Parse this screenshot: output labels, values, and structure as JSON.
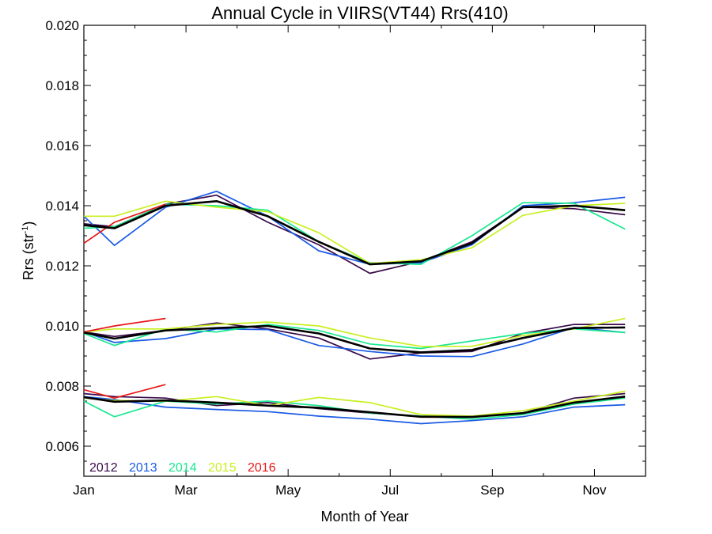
{
  "chart_data": {
    "type": "line",
    "title": "Annual Cycle in VIIRS(VT44) Rrs(410)",
    "xlabel": "Month of Year",
    "ylabel": "Rrs (str",
    "ylabel_sup": "-1",
    "ylabel_close": ")",
    "xlim": [
      1,
      12
    ],
    "ylim": [
      0.005,
      0.02
    ],
    "x_ticks": [
      {
        "value": 1,
        "label": "Jan"
      },
      {
        "value": 3,
        "label": "Mar"
      },
      {
        "value": 5,
        "label": "May"
      },
      {
        "value": 7,
        "label": "Jul"
      },
      {
        "value": 9,
        "label": "Sep"
      },
      {
        "value": 11,
        "label": "Nov"
      }
    ],
    "y_ticks": [
      {
        "value": 0.006,
        "label": "0.006"
      },
      {
        "value": 0.008,
        "label": "0.008"
      },
      {
        "value": 0.01,
        "label": "0.010"
      },
      {
        "value": 0.012,
        "label": "0.012"
      },
      {
        "value": 0.014,
        "label": "0.014"
      },
      {
        "value": 0.016,
        "label": "0.016"
      },
      {
        "value": 0.018,
        "label": "0.018"
      },
      {
        "value": 0.02,
        "label": "0.020"
      }
    ],
    "legend_position": "bottom-left",
    "grid": false,
    "x": [
      1.0,
      1.6,
      2.6,
      3.6,
      4.6,
      5.6,
      6.6,
      7.6,
      8.6,
      9.6,
      10.6,
      11.6
    ],
    "series": [
      {
        "name": "2012",
        "color": "#3a0a4a",
        "legend": true,
        "groups": [
          [
            0.0134,
            0.0133,
            0.01405,
            0.01435,
            0.01345,
            0.0127,
            0.01175,
            0.01215,
            0.0128,
            0.01395,
            0.0139,
            0.0137
          ],
          [
            0.0098,
            0.00965,
            0.00985,
            0.0101,
            0.0099,
            0.0096,
            0.0089,
            0.0091,
            0.00915,
            0.00975,
            0.01005,
            0.01005
          ],
          [
            0.00775,
            0.00765,
            0.0076,
            0.00735,
            0.00745,
            0.00725,
            0.0071,
            0.007,
            0.007,
            0.0071,
            0.0076,
            0.00775
          ]
        ]
      },
      {
        "name": "2013",
        "color": "#1a5ae6",
        "legend": true,
        "groups": [
          [
            0.01365,
            0.01268,
            0.01395,
            0.01448,
            0.01365,
            0.0125,
            0.01205,
            0.0121,
            0.0127,
            0.014,
            0.0141,
            0.01428
          ],
          [
            0.0098,
            0.00945,
            0.00958,
            0.0099,
            0.00988,
            0.00935,
            0.00915,
            0.009,
            0.00898,
            0.0094,
            0.00995,
            0.00978
          ],
          [
            0.00765,
            0.00755,
            0.0073,
            0.00722,
            0.00715,
            0.007,
            0.0069,
            0.00675,
            0.00685,
            0.00698,
            0.0073,
            0.00738
          ]
        ]
      },
      {
        "name": "2014",
        "color": "#1ae890",
        "legend": true,
        "groups": [
          [
            0.01325,
            0.0133,
            0.01405,
            0.014,
            0.01385,
            0.0128,
            0.0121,
            0.01205,
            0.013,
            0.0141,
            0.01408,
            0.01322
          ],
          [
            0.00975,
            0.00935,
            0.0099,
            0.0098,
            0.01005,
            0.00985,
            0.0094,
            0.00925,
            0.0095,
            0.00975,
            0.0099,
            0.00978
          ],
          [
            0.0075,
            0.00698,
            0.0075,
            0.0074,
            0.0075,
            0.00735,
            0.0071,
            0.007,
            0.0069,
            0.00705,
            0.0074,
            0.0076
          ]
        ]
      },
      {
        "name": "2015",
        "color": "#c8f020",
        "legend": true,
        "groups": [
          [
            0.01365,
            0.01365,
            0.01415,
            0.01395,
            0.0138,
            0.0131,
            0.01208,
            0.0122,
            0.0126,
            0.01368,
            0.014,
            0.01408
          ],
          [
            0.0098,
            0.0099,
            0.0099,
            0.01005,
            0.01013,
            0.01,
            0.0096,
            0.00932,
            0.00932,
            0.00968,
            0.0099,
            0.01025
          ],
          [
            0.0076,
            0.00752,
            0.0075,
            0.00765,
            0.00735,
            0.00762,
            0.00745,
            0.00705,
            0.007,
            0.00718,
            0.0075,
            0.00783
          ]
        ]
      },
      {
        "name": "2016",
        "color": "#e81818",
        "legend": true,
        "x": [
          1.0,
          1.6,
          2.6
        ],
        "groups": [
          [
            0.01275,
            0.01345,
            0.01405
          ],
          [
            0.0098,
            0.01,
            0.01025
          ],
          [
            0.00788,
            0.0076,
            0.00805
          ]
        ]
      },
      {
        "name": "mean",
        "color": "#000000",
        "legend": false,
        "width": 2.6,
        "groups": [
          [
            0.01335,
            0.01325,
            0.014,
            0.01415,
            0.01365,
            0.0128,
            0.01205,
            0.01215,
            0.01275,
            0.01395,
            0.014,
            0.01385
          ],
          [
            0.00978,
            0.00958,
            0.00985,
            0.00993,
            0.01,
            0.00975,
            0.00925,
            0.00912,
            0.0092,
            0.0096,
            0.00993,
            0.00995
          ],
          [
            0.00763,
            0.00748,
            0.00752,
            0.00745,
            0.00735,
            0.00728,
            0.00713,
            0.00698,
            0.00697,
            0.0071,
            0.00745,
            0.00765
          ]
        ]
      }
    ]
  }
}
